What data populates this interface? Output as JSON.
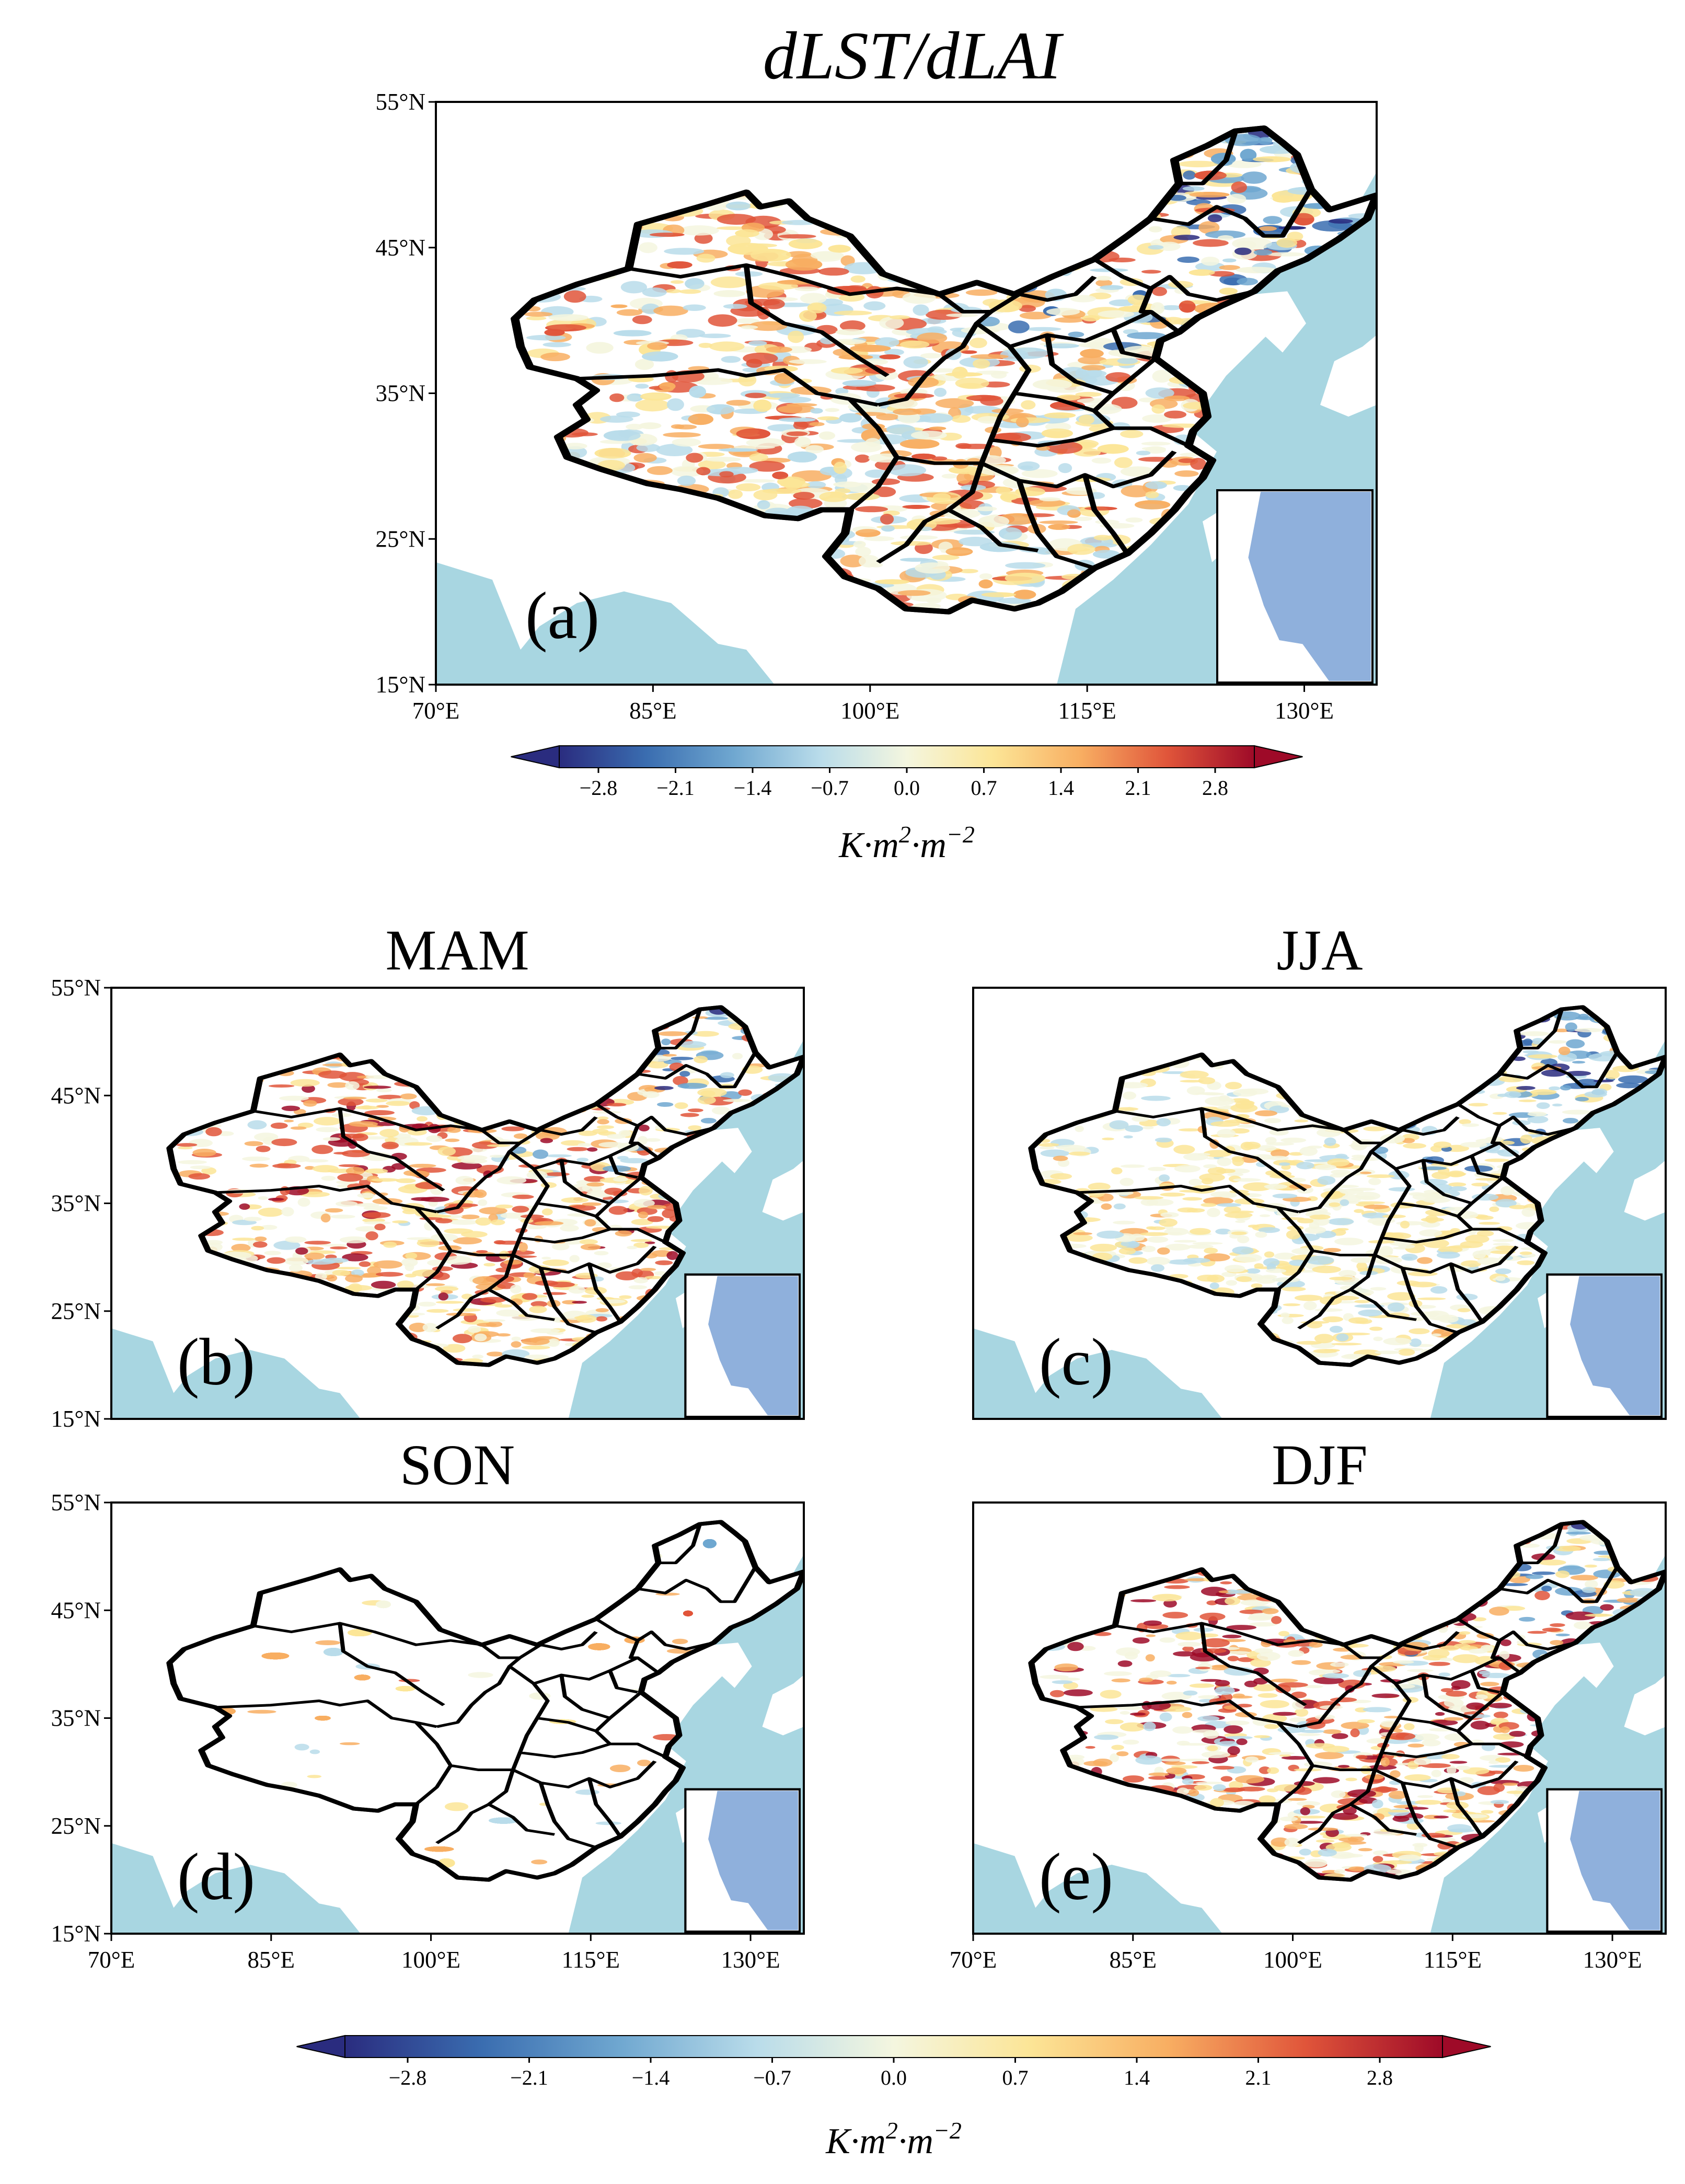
{
  "figure": {
    "main_title": "dLST/dLAI",
    "colorbar_unit": {
      "base": "K·m",
      "sup1": "2",
      "mid": "·m",
      "sup2": "−2"
    },
    "colorbar_ticks": [
      "−2.8",
      "−2.1",
      "−1.4",
      "−0.7",
      "0.0",
      "0.7",
      "1.4",
      "2.1",
      "2.8"
    ],
    "colorbar_colors": [
      "#2a2c7f",
      "#3a6db0",
      "#6fa7d0",
      "#b9dcea",
      "#f4f6df",
      "#fce596",
      "#f8ae62",
      "#e0553a",
      "#9e0a28"
    ]
  },
  "lat_labels": [
    "55°N",
    "45°N",
    "35°N",
    "25°N",
    "15°N"
  ],
  "lon_labels": [
    "70°E",
    "85°E",
    "100°E",
    "115°E",
    "130°E"
  ],
  "panels": [
    {
      "id": "a",
      "title": "",
      "label": "(a)",
      "show_lat": true,
      "show_lon": true
    },
    {
      "id": "b",
      "title": "MAM",
      "label": "(b)",
      "show_lat": true,
      "show_lon": false
    },
    {
      "id": "c",
      "title": "JJA",
      "label": "(c)",
      "show_lat": false,
      "show_lon": false
    },
    {
      "id": "d",
      "title": "SON",
      "label": "(d)",
      "show_lat": true,
      "show_lon": true
    },
    {
      "id": "e",
      "title": "DJF",
      "label": "(e)",
      "show_lat": false,
      "show_lon": true
    }
  ]
}
